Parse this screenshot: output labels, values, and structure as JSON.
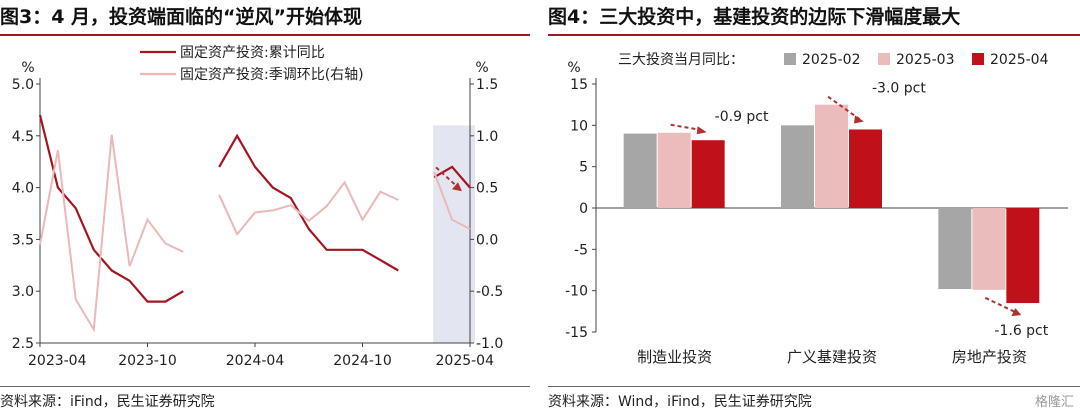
{
  "left": {
    "title": "图3：4 月，投资端面临的“逆风”开始体现",
    "source": "资料来源：iFind，民生证券研究院",
    "chart_data": {
      "type": "line",
      "y_unit_left": "%",
      "y_unit_right": "%",
      "ylim_left": [
        2.5,
        5.0
      ],
      "yticks_left": [
        "2.5",
        "3.0",
        "3.5",
        "4.0",
        "4.5",
        "5.0"
      ],
      "ylim_right": [
        -1.0,
        1.5
      ],
      "yticks_right": [
        "-1.0",
        "-0.5",
        "0.0",
        "0.5",
        "1.0",
        "1.5"
      ],
      "x_ticks": [
        "2023-04",
        "2023-10",
        "2024-04",
        "2024-10",
        "2025-04"
      ],
      "x": [
        "2023-04",
        "2023-05",
        "2023-06",
        "2023-07",
        "2023-08",
        "2023-09",
        "2023-10",
        "2023-11",
        "2023-12",
        "2024-01",
        "2024-02",
        "2024-03",
        "2024-04",
        "2024-05",
        "2024-06",
        "2024-07",
        "2024-08",
        "2024-09",
        "2024-10",
        "2024-11",
        "2024-12",
        "2025-01",
        "2025-02",
        "2025-03",
        "2025-04"
      ],
      "series": [
        {
          "name": "固定资产投资:累计同比",
          "axis": "left",
          "color": "#a31621",
          "values": [
            4.7,
            4.0,
            3.8,
            3.4,
            3.2,
            3.1,
            2.9,
            2.9,
            3.0,
            null,
            4.2,
            4.5,
            4.2,
            4.0,
            3.9,
            3.6,
            3.4,
            3.4,
            3.4,
            3.3,
            3.2,
            null,
            4.1,
            4.2,
            4.0
          ]
        },
        {
          "name": "固定资产投资:季调环比(右轴)",
          "axis": "right",
          "color": "#ebb8b8",
          "values": [
            -0.05,
            0.86,
            -0.58,
            -0.87,
            1.01,
            -0.26,
            0.19,
            -0.04,
            -0.12,
            null,
            0.43,
            0.05,
            0.26,
            0.28,
            0.33,
            0.18,
            0.32,
            0.55,
            0.19,
            0.46,
            0.38,
            null,
            0.65,
            0.19,
            0.1
          ]
        }
      ],
      "highlight_x": [
        "2025-02",
        "2025-04"
      ]
    }
  },
  "right": {
    "title": "图4：三大投资中，基建投资的边际下滑幅度最大",
    "source": "资料来源：Wind，iFind，民生证券研究院",
    "chart_data": {
      "type": "bar",
      "y_unit": "%",
      "legend_title": "三大投资当月同比：",
      "ylim": [
        -15,
        15
      ],
      "yticks": [
        "-15",
        "-10",
        "-5",
        "0",
        "5",
        "10",
        "15"
      ],
      "categories": [
        "制造业投资",
        "广义基建投资",
        "房地产投资"
      ],
      "series": [
        {
          "name": "2025-02",
          "color": "#a6a6a6",
          "values": [
            9.0,
            10.0,
            -9.8
          ]
        },
        {
          "name": "2025-03",
          "color": "#ebbcbc",
          "values": [
            9.1,
            12.5,
            -9.9
          ]
        },
        {
          "name": "2025-04",
          "color": "#c0101a",
          "values": [
            8.2,
            9.5,
            -11.5
          ]
        }
      ],
      "annotations": [
        "-0.9 pct",
        "-3.0 pct",
        "-1.6 pct"
      ]
    }
  },
  "watermark": "格隆汇"
}
